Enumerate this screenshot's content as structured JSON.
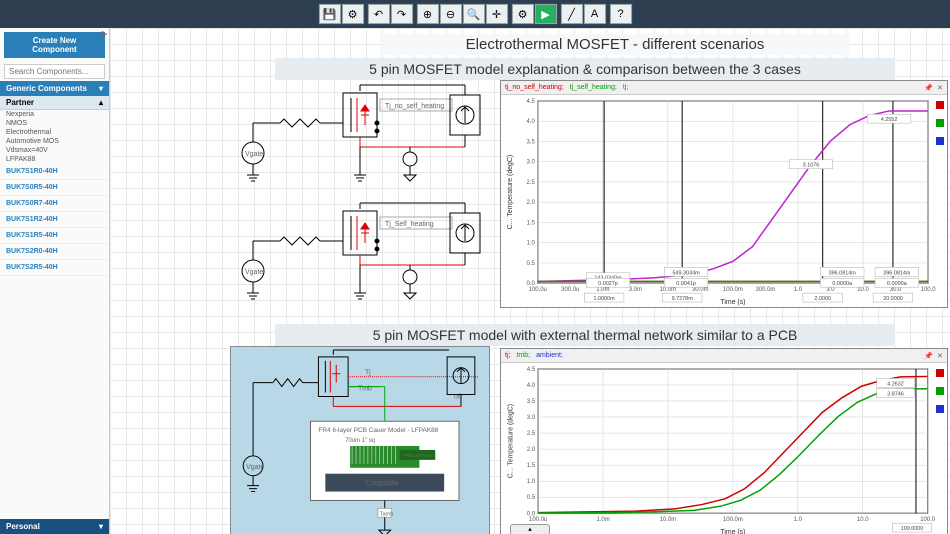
{
  "toolbar": {
    "groups": [
      {
        "icons": [
          "💾",
          "⚙"
        ]
      },
      {
        "icons": [
          "↶",
          "↷"
        ]
      },
      {
        "icons": [
          "🔍+",
          "🔍-",
          "🔍",
          "✛"
        ]
      },
      {
        "icons": [
          "⚙",
          "▶"
        ]
      },
      {
        "icons": [
          "╱",
          "A"
        ]
      },
      {
        "icons": [
          "?"
        ]
      }
    ]
  },
  "sidebar": {
    "create_label": "Create New Component",
    "search_placeholder": "Search Components...",
    "generic_header": "Generic Components",
    "partner_header": "Partner",
    "personal_header": "Personal",
    "filters": [
      "Nexperia",
      "NMOS",
      "Electrothermal",
      "Automotive MOS",
      "Vdsmax=40V",
      "LFPAK88"
    ],
    "components": [
      "BUK7S1R0-40H",
      "BUK7S0R5-40H",
      "BUK7S0R7-40H",
      "BUK7S1R2-40H",
      "BUK7S1R5-40H",
      "BUK7S2R0-40H",
      "BUK7S2R5-40H"
    ]
  },
  "titles": {
    "main": "Electrothermal MOSFET - different scenarios",
    "sub1": "5 pin MOSFET model explanation & comparison between the 3 cases",
    "sub2": "5 pin MOSFET model with external thermal network similar to a PCB"
  },
  "circuit_labels": {
    "top": "Tj_no_self_heating",
    "mid": "Tj_Self_heating",
    "tj": "Tj",
    "tmb": "Tmb",
    "u6": "u6",
    "tamb": "Tamb",
    "ambient": "Ambient"
  },
  "pcb": {
    "title": "FR4 6-layer PCB Cauer Model - LFPAK88",
    "subtitle": "70um 1\" sq",
    "badge": "PRELIMINARY",
    "coldplate": "Coldplate"
  },
  "chart1": {
    "trace_labels": [
      "tj_no_self_heating",
      "tj_self_heating",
      "tj"
    ],
    "trace_colors": [
      "#d00000",
      "#00a000",
      "#c020d0"
    ],
    "ylabel": "C... Temperature (degC)",
    "xlabel": "Time (s)",
    "ylim": [
      0,
      4.5
    ],
    "ytick_step": 0.5,
    "xticks_major": [
      "100.0u",
      "1.0m",
      "10.0m",
      "100.0m",
      "1.0",
      "10.0",
      "100.0"
    ],
    "xticks_minor": [
      "300.0u",
      "3.0m",
      "30.0m",
      "300.0m",
      "3.0",
      "30.0"
    ],
    "cursors": [
      "1.0000m",
      "9.7278m",
      "2.0000",
      "20.0000"
    ],
    "markers": [
      {
        "x": 0.18,
        "y": 0.97,
        "text": "143.0340m",
        "color": "#d00"
      },
      {
        "x": 0.18,
        "y": 1.0,
        "text": "0.0027p",
        "color": "#c020d0"
      },
      {
        "x": 0.38,
        "y": 0.94,
        "text": "549.3034m",
        "color": "#d00"
      },
      {
        "x": 0.38,
        "y": 1.0,
        "text": "0.0041p",
        "color": "#c020d0"
      },
      {
        "x": 0.7,
        "y": 0.35,
        "text": "3.1076",
        "color": "#c020d0"
      },
      {
        "x": 0.78,
        "y": 0.94,
        "text": "396.0814m",
        "color": "#d00"
      },
      {
        "x": 0.78,
        "y": 1.0,
        "text": "0.0000a",
        "color": "#00a000"
      },
      {
        "x": 0.9,
        "y": 0.1,
        "text": "4.2552",
        "color": "#c020d0"
      },
      {
        "x": 0.92,
        "y": 0.94,
        "text": "396.0814m",
        "color": "#d00"
      },
      {
        "x": 0.92,
        "y": 1.0,
        "text": "0.0000a",
        "color": "#00a000"
      }
    ],
    "curve_tj": [
      [
        0,
        0.01
      ],
      [
        0.1,
        0.015
      ],
      [
        0.2,
        0.02
      ],
      [
        0.3,
        0.03
      ],
      [
        0.4,
        0.05
      ],
      [
        0.45,
        0.08
      ],
      [
        0.5,
        0.12
      ],
      [
        0.55,
        0.2
      ],
      [
        0.6,
        0.35
      ],
      [
        0.65,
        0.5
      ],
      [
        0.7,
        0.65
      ],
      [
        0.75,
        0.78
      ],
      [
        0.8,
        0.87
      ],
      [
        0.85,
        0.92
      ],
      [
        0.9,
        0.945
      ],
      [
        1,
        0.945
      ]
    ],
    "curve_flat": [
      [
        0,
        0.01
      ],
      [
        1,
        0.01
      ]
    ]
  },
  "chart2": {
    "trace_labels": [
      "tj",
      "tmb",
      "ambient"
    ],
    "trace_colors": [
      "#d00000",
      "#00a000",
      "#2030d0"
    ],
    "ylabel": "C... Temperature (degC)",
    "xlabel": "Time (s)",
    "ylim": [
      0,
      4.5
    ],
    "ytick_step": 0.5,
    "xticks": [
      "100.0u",
      "1.0m",
      "10.0m",
      "100.0m",
      "1.0",
      "10.0",
      "100.0"
    ],
    "cursor": "100.0000",
    "markers": [
      {
        "x": 0.92,
        "y": 0.1,
        "text": "4.2632",
        "color": "#d00"
      },
      {
        "x": 0.92,
        "y": 0.17,
        "text": "3.8746",
        "color": "#00a000"
      }
    ],
    "curve_tj": [
      [
        0,
        0.005
      ],
      [
        0.15,
        0.01
      ],
      [
        0.25,
        0.015
      ],
      [
        0.35,
        0.03
      ],
      [
        0.42,
        0.06
      ],
      [
        0.48,
        0.1
      ],
      [
        0.53,
        0.17
      ],
      [
        0.58,
        0.28
      ],
      [
        0.63,
        0.42
      ],
      [
        0.68,
        0.56
      ],
      [
        0.73,
        0.7
      ],
      [
        0.78,
        0.8
      ],
      [
        0.83,
        0.88
      ],
      [
        0.88,
        0.92
      ],
      [
        0.93,
        0.945
      ],
      [
        1,
        0.948
      ]
    ],
    "curve_tmb": [
      [
        0,
        0.003
      ],
      [
        0.2,
        0.005
      ],
      [
        0.3,
        0.01
      ],
      [
        0.4,
        0.02
      ],
      [
        0.47,
        0.05
      ],
      [
        0.52,
        0.09
      ],
      [
        0.57,
        0.16
      ],
      [
        0.62,
        0.27
      ],
      [
        0.67,
        0.4
      ],
      [
        0.72,
        0.54
      ],
      [
        0.77,
        0.67
      ],
      [
        0.82,
        0.77
      ],
      [
        0.87,
        0.83
      ],
      [
        0.92,
        0.86
      ],
      [
        1,
        0.862
      ]
    ]
  },
  "colors": {
    "accent": "#2980b9",
    "toolbar_bg": "#2c3e50",
    "pcb_bg": "#b8d8e8",
    "pcb_green": "#2a8a2a",
    "pcb_dark": "#3a4a5a"
  }
}
